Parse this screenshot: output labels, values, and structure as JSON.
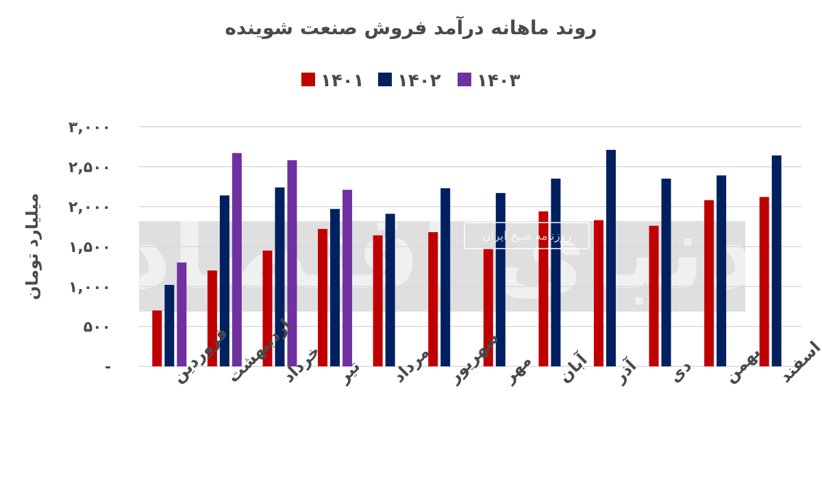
{
  "chart_data": {
    "type": "bar",
    "title": "روند ماهانه درآمد فروش صنعت شوینده",
    "ylabel": "میلیارد تومان",
    "xlabel": "",
    "ylim": [
      0,
      3000
    ],
    "yticks": [
      0,
      500,
      1000,
      1500,
      2000,
      2500,
      3000
    ],
    "ytick_labels": [
      "-",
      "۵۰۰",
      "۱,۰۰۰",
      "۱,۵۰۰",
      "۲,۰۰۰",
      "۲,۵۰۰",
      "۳,۰۰۰"
    ],
    "grid": true,
    "legend_position": "top",
    "categories": [
      "فروردین",
      "اردیبهشت",
      "خرداد",
      "تیر",
      "مرداد",
      "شهریور",
      "مهر",
      "آبان",
      "آذر",
      "دی",
      "بهمن",
      "اسفند"
    ],
    "series": [
      {
        "name": "۱۴۰۱",
        "color": "#c00000",
        "values": [
          700,
          1200,
          1450,
          1720,
          1640,
          1680,
          1480,
          1940,
          1830,
          1760,
          2080,
          2120
        ]
      },
      {
        "name": "۱۴۰۲",
        "color": "#002060",
        "values": [
          1020,
          2140,
          2240,
          1970,
          1910,
          2230,
          2170,
          2350,
          2710,
          2350,
          2390,
          2640
        ]
      },
      {
        "name": "۱۴۰۳",
        "color": "#7030a0",
        "values": [
          1300,
          2670,
          2580,
          2210,
          null,
          null,
          null,
          null,
          null,
          null,
          null,
          null
        ]
      }
    ]
  },
  "watermark": {
    "badge_text": "روزنامه صبح ایران",
    "script_text": "دنیای اقتصاد"
  }
}
